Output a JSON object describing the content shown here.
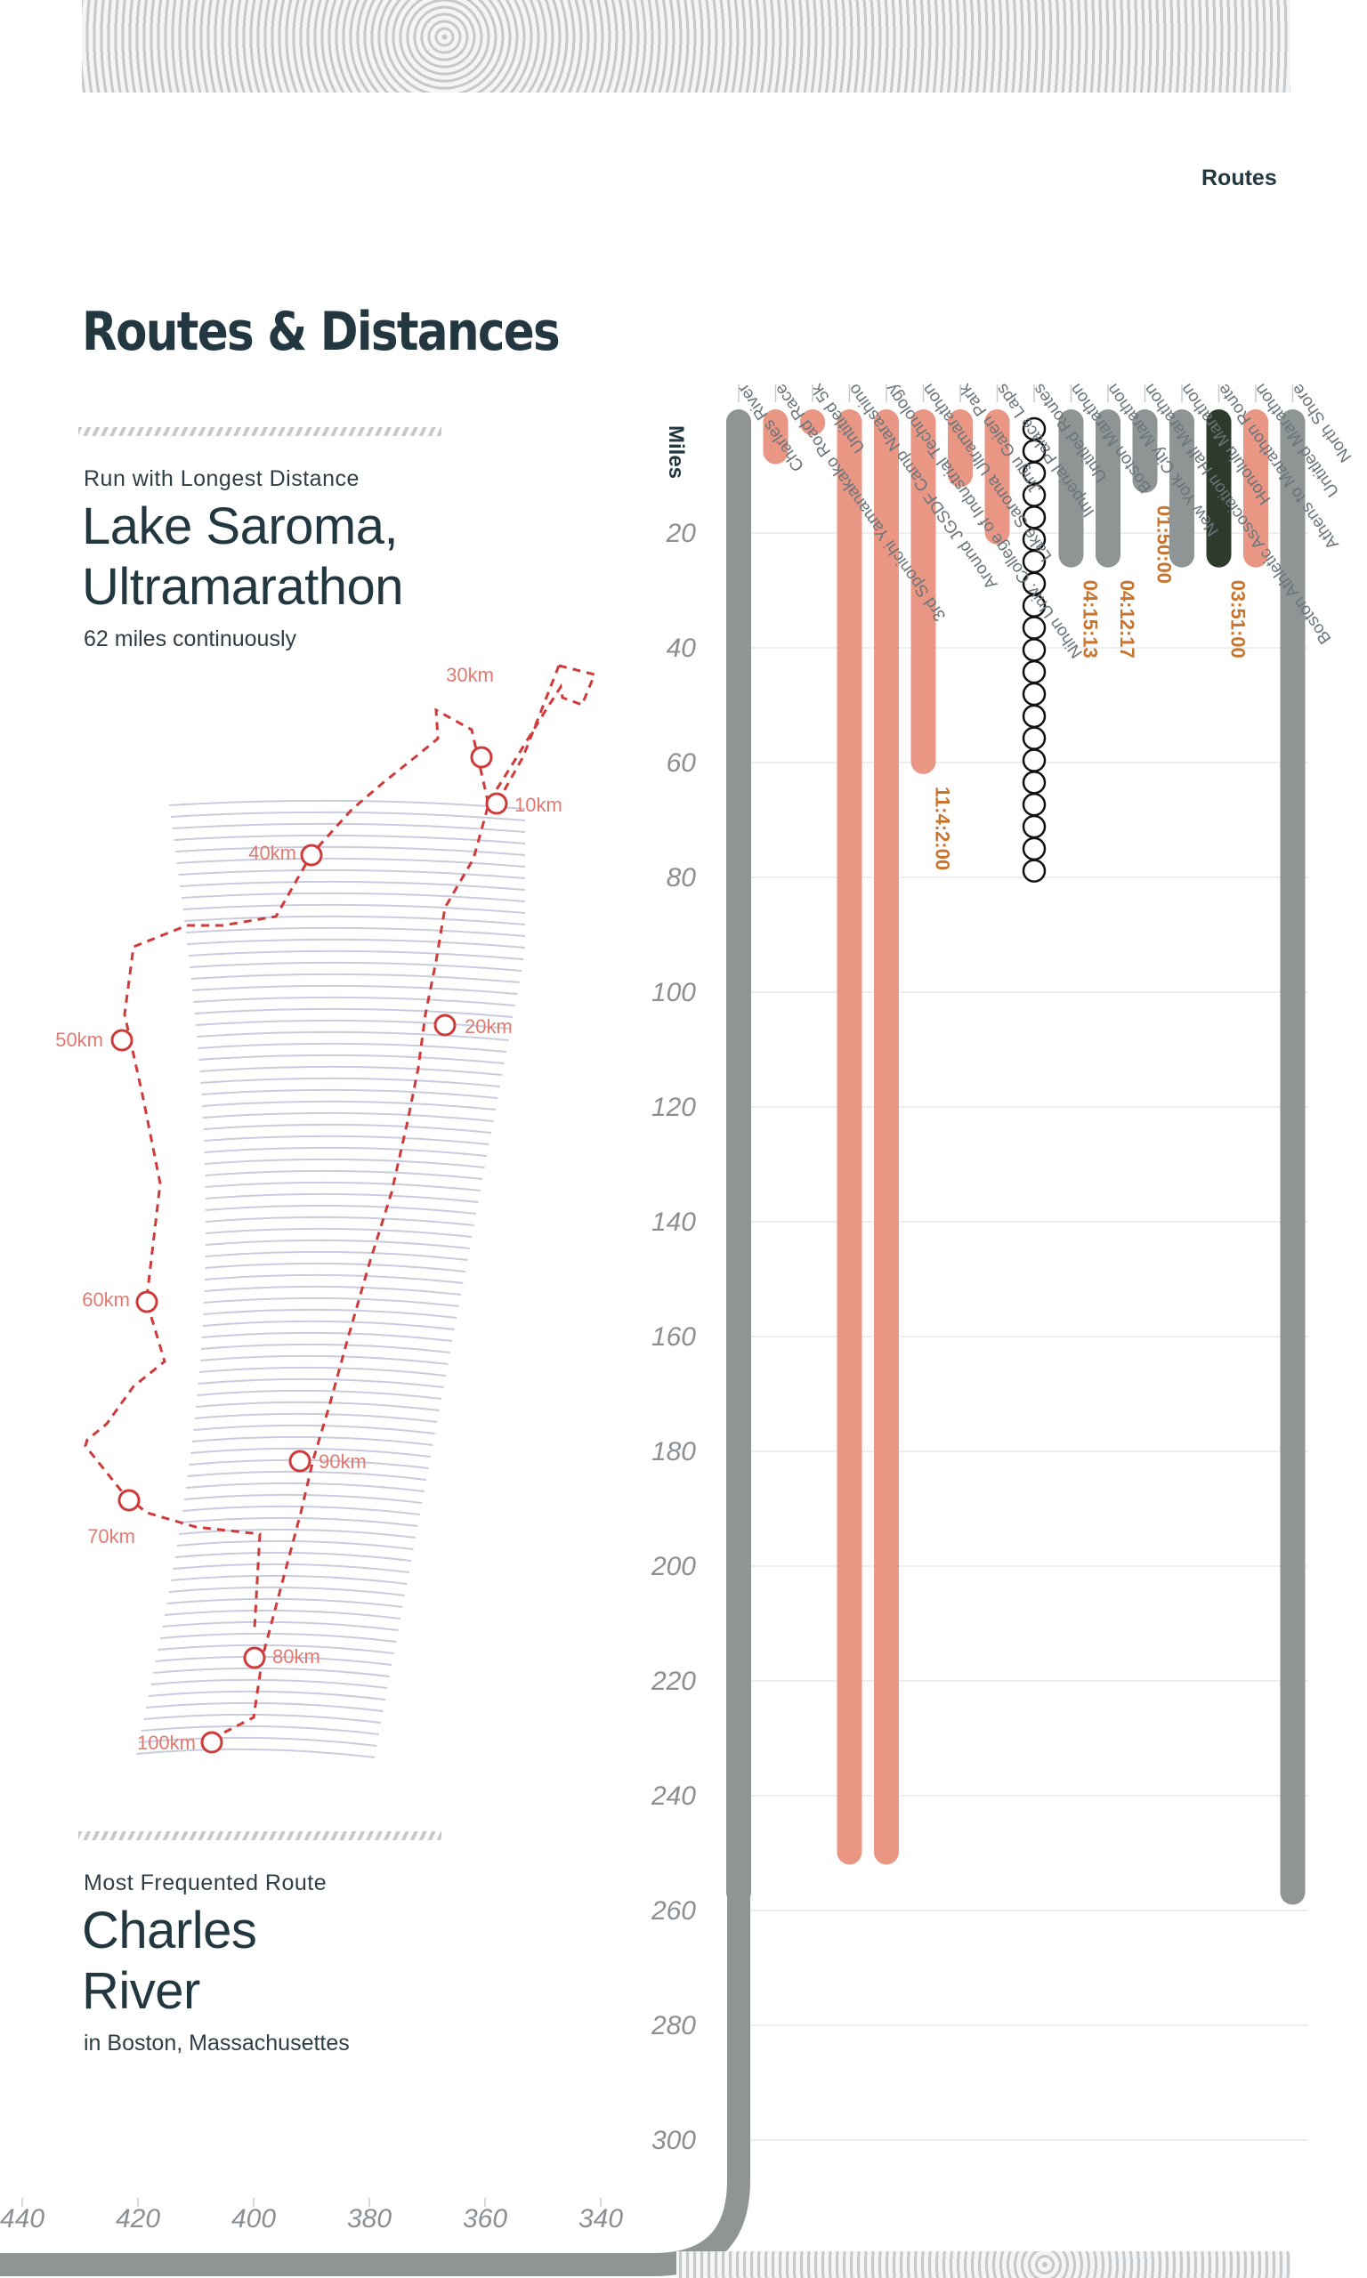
{
  "page": {
    "title": "Routes & Distances",
    "longest": {
      "kicker": "Run with Longest Distance",
      "name_line1": "Lake Saroma,",
      "name_line2": "Ultramarathon",
      "detail": "62 miles continuously"
    },
    "frequent": {
      "kicker": "Most Frequented Route",
      "name_line1": "Charles",
      "name_line2": "River",
      "detail": "in Boston, Massachusettes"
    },
    "routes_label": "Routes"
  },
  "map": {
    "markers": [
      "10km",
      "20km",
      "30km",
      "40km",
      "50km",
      "60km",
      "70km",
      "80km",
      "90km",
      "100km"
    ],
    "colors": {
      "route": "#cf3a3a",
      "label": "#e07b73",
      "water": "#c9ccdc"
    }
  },
  "chart_data": {
    "type": "bar",
    "orientation": "vertical-downward",
    "y_axis_label": "Miles",
    "x_group_label": "Routes",
    "y_ticks": [
      20,
      40,
      60,
      80,
      100,
      120,
      140,
      160,
      180,
      200,
      220,
      240,
      260,
      280,
      300
    ],
    "bottom_axis_ticks": [
      440,
      420,
      400,
      380,
      360,
      340
    ],
    "ylim": [
      0,
      300
    ],
    "grid": true,
    "colors": {
      "cumulative": "#8f9594",
      "single": "#e99684",
      "highlight": "#2e3a2b",
      "time_label": "#c8742c",
      "axis_text": "#8a8f94"
    },
    "categories": [
      "Charles River",
      "3rd Sponichi Yamanakako Road Race",
      "Untitled 5k",
      "Around JGSDF Camp Narashino",
      "Nihon Univ. College of Industrial Technology",
      "Lake Saroma Ultramarathon",
      "Jingu Gaien Park",
      "Imperial Palace Laps",
      "Untitled Routes",
      "Boston Marathon",
      "New York City Marathon",
      "Boston Athletic Association Half Marathon",
      "Honolulu Marathon",
      "Athens to Marathon Route",
      "Untitled Marathon",
      "North Shore"
    ],
    "values": [
      259,
      8,
      3,
      252,
      252,
      62,
      12,
      22,
      80,
      26,
      26,
      13,
      26,
      26,
      26,
      259
    ],
    "kinds": [
      "cumulative",
      "single",
      "single",
      "single",
      "single",
      "single",
      "single",
      "single",
      "circles",
      "cumulative",
      "cumulative",
      "cumulative",
      "cumulative",
      "highlight",
      "single",
      "cumulative"
    ],
    "time_labels": [
      "",
      "",
      "",
      "",
      "",
      "11:4:2:00",
      "",
      "",
      "",
      "04:15:13",
      "04:12:17",
      "01:50:00",
      "",
      "03:51:00",
      "",
      ""
    ]
  }
}
